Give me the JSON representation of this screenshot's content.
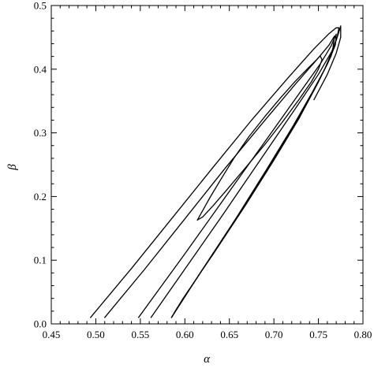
{
  "chart_data": {
    "type": "line",
    "title": "",
    "xlabel": "α",
    "ylabel": "β",
    "xlim": [
      0.45,
      0.8
    ],
    "ylim": [
      0.0,
      0.5
    ],
    "x_ticks": [
      0.45,
      0.5,
      0.55,
      0.6,
      0.65,
      0.7,
      0.75,
      0.8
    ],
    "x_tick_labels": [
      "0.45",
      "0.50",
      "0.55",
      "0.60",
      "0.65",
      "0.70",
      "0.75",
      "0.80"
    ],
    "y_ticks": [
      0.0,
      0.1,
      0.2,
      0.3,
      0.4,
      0.5
    ],
    "y_tick_labels": [
      "0.0",
      "0.1",
      "0.2",
      "0.3",
      "0.4",
      "0.5"
    ],
    "grid": false,
    "legend": "none",
    "series": [
      {
        "points": [
          [
            0.614,
            0.163
          ],
          [
            0.62,
            0.178
          ],
          [
            0.628,
            0.198
          ],
          [
            0.64,
            0.226
          ],
          [
            0.655,
            0.26
          ],
          [
            0.672,
            0.294
          ],
          [
            0.69,
            0.326
          ],
          [
            0.708,
            0.356
          ],
          [
            0.724,
            0.381
          ],
          [
            0.738,
            0.401
          ],
          [
            0.748,
            0.415
          ],
          [
            0.752,
            0.421
          ],
          [
            0.754,
            0.415
          ],
          [
            0.75,
            0.4
          ],
          [
            0.742,
            0.38
          ],
          [
            0.728,
            0.352
          ],
          [
            0.71,
            0.318
          ],
          [
            0.69,
            0.282
          ],
          [
            0.668,
            0.245
          ],
          [
            0.648,
            0.212
          ],
          [
            0.632,
            0.186
          ],
          [
            0.62,
            0.168
          ],
          [
            0.614,
            0.163
          ]
        ]
      },
      {
        "points": [
          [
            0.51,
            0.01
          ],
          [
            0.555,
            0.086
          ],
          [
            0.6,
            0.165
          ],
          [
            0.645,
            0.244
          ],
          [
            0.69,
            0.32
          ],
          [
            0.725,
            0.378
          ],
          [
            0.75,
            0.418
          ],
          [
            0.762,
            0.438
          ],
          [
            0.768,
            0.452
          ],
          [
            0.766,
            0.43
          ],
          [
            0.757,
            0.4
          ],
          [
            0.742,
            0.36
          ],
          [
            0.72,
            0.305
          ],
          [
            0.69,
            0.237
          ],
          [
            0.655,
            0.16
          ],
          [
            0.62,
            0.086
          ],
          [
            0.585,
            0.01
          ]
        ]
      },
      {
        "points": [
          [
            0.494,
            0.01
          ],
          [
            0.54,
            0.087
          ],
          [
            0.585,
            0.165
          ],
          [
            0.63,
            0.243
          ],
          [
            0.675,
            0.32
          ],
          [
            0.715,
            0.385
          ],
          [
            0.745,
            0.432
          ],
          [
            0.762,
            0.456
          ],
          [
            0.77,
            0.465
          ],
          [
            0.773,
            0.465
          ],
          [
            0.771,
            0.45
          ],
          [
            0.764,
            0.42
          ],
          [
            0.75,
            0.38
          ],
          [
            0.728,
            0.322
          ],
          [
            0.7,
            0.257
          ],
          [
            0.668,
            0.186
          ],
          [
            0.632,
            0.11
          ],
          [
            0.598,
            0.04
          ],
          [
            0.585,
            0.01
          ]
        ]
      },
      {
        "points": [
          [
            0.548,
            0.01
          ],
          [
            0.6,
            0.11
          ],
          [
            0.65,
            0.208
          ],
          [
            0.695,
            0.296
          ],
          [
            0.73,
            0.365
          ],
          [
            0.752,
            0.408
          ],
          [
            0.764,
            0.436
          ],
          [
            0.77,
            0.455
          ],
          [
            0.769,
            0.438
          ],
          [
            0.76,
            0.408
          ],
          [
            0.744,
            0.366
          ],
          [
            0.722,
            0.312
          ],
          [
            0.692,
            0.243
          ],
          [
            0.658,
            0.167
          ],
          [
            0.622,
            0.09
          ],
          [
            0.59,
            0.022
          ],
          [
            0.585,
            0.01
          ]
        ]
      },
      {
        "points": [
          [
            0.562,
            0.01
          ],
          [
            0.6,
            0.086
          ],
          [
            0.64,
            0.166
          ],
          [
            0.685,
            0.258
          ],
          [
            0.725,
            0.34
          ],
          [
            0.75,
            0.392
          ],
          [
            0.765,
            0.428
          ],
          [
            0.772,
            0.454
          ],
          [
            0.775,
            0.468
          ],
          [
            0.775,
            0.45
          ],
          [
            0.77,
            0.425
          ],
          [
            0.76,
            0.392
          ],
          [
            0.745,
            0.352
          ]
        ]
      }
    ]
  }
}
